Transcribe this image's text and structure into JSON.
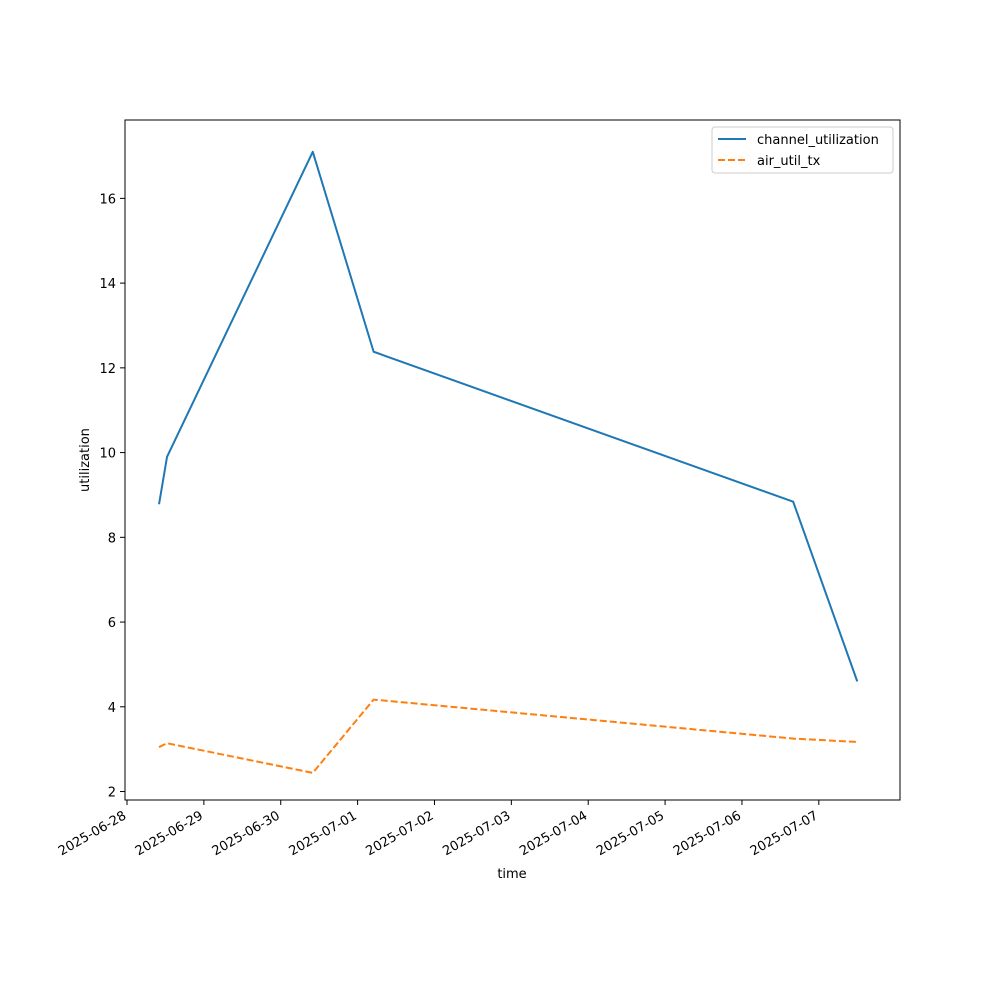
{
  "chart_data": {
    "type": "line",
    "title": "",
    "xlabel": "time",
    "ylabel": "utilization",
    "x_axis": {
      "kind": "date",
      "range": [
        "2025-06-28T00:00",
        "2025-07-08T00:00"
      ],
      "ticks": [
        "2025-06-28",
        "2025-06-29",
        "2025-06-30",
        "2025-07-01",
        "2025-07-02",
        "2025-07-03",
        "2025-07-04",
        "2025-07-05",
        "2025-07-06",
        "2025-07-07"
      ]
    },
    "ylim": [
      1.8,
      17.85
    ],
    "yticks": [
      2,
      4,
      6,
      8,
      10,
      12,
      14,
      16
    ],
    "grid": false,
    "legend_position": "top-right",
    "series": [
      {
        "name": "channel_utilization",
        "color": "#1f77b4",
        "style": "solid",
        "points": [
          {
            "x": "2025-06-28T10:00",
            "y": 8.78
          },
          {
            "x": "2025-06-28T12:30",
            "y": 9.9
          },
          {
            "x": "2025-06-30T10:00",
            "y": 17.1
          },
          {
            "x": "2025-07-01T05:00",
            "y": 12.38
          },
          {
            "x": "2025-07-06T16:00",
            "y": 8.84
          },
          {
            "x": "2025-07-07T12:00",
            "y": 4.6
          }
        ]
      },
      {
        "name": "air_util_tx",
        "color": "#ff7f0e",
        "style": "dashed",
        "points": [
          {
            "x": "2025-06-28T10:00",
            "y": 3.05
          },
          {
            "x": "2025-06-28T12:30",
            "y": 3.14
          },
          {
            "x": "2025-06-30T10:00",
            "y": 2.44
          },
          {
            "x": "2025-07-01T05:00",
            "y": 4.17
          },
          {
            "x": "2025-07-06T16:00",
            "y": 3.25
          },
          {
            "x": "2025-07-07T12:00",
            "y": 3.17
          }
        ]
      }
    ]
  }
}
